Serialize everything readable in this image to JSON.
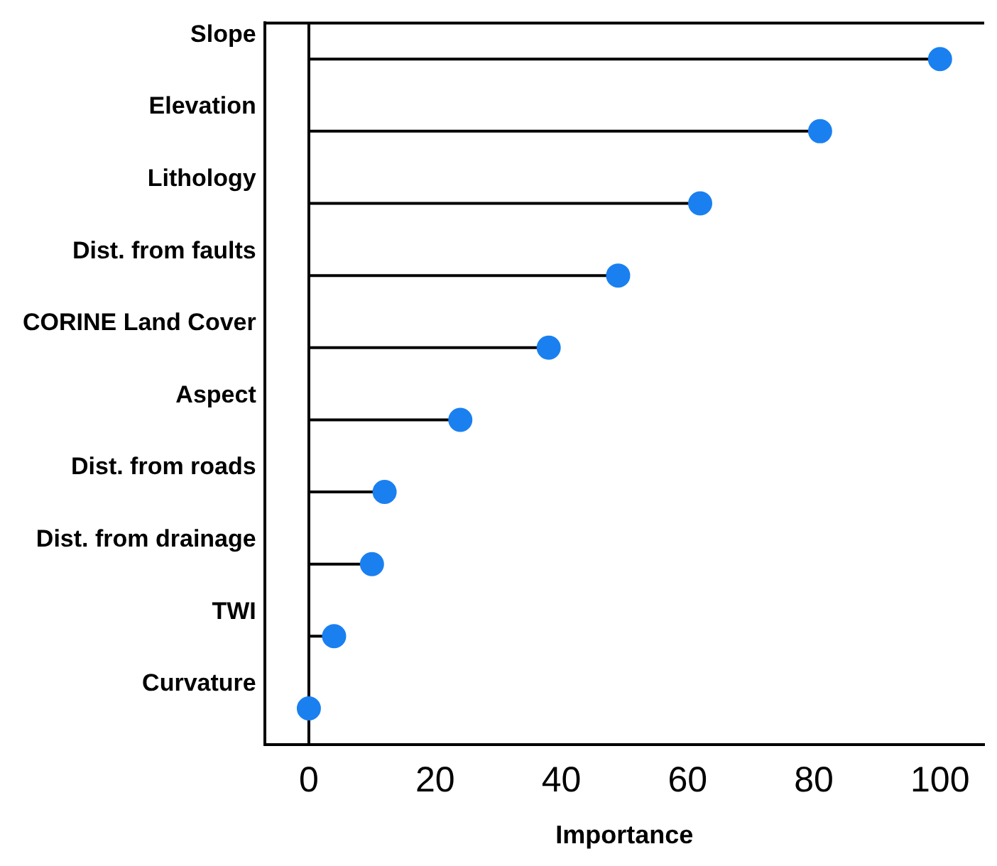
{
  "chart_data": {
    "type": "lollipop",
    "orientation": "horizontal",
    "xlabel": "Importance",
    "categories": [
      "Slope",
      "Elevation",
      "Lithology",
      "Dist. from faults",
      "CORINE Land Cover",
      "Aspect",
      "Dist. from roads",
      "Dist. from drainage",
      "TWI",
      "Curvature"
    ],
    "values": [
      100,
      81,
      62,
      49,
      38,
      24,
      12,
      10,
      4,
      0
    ],
    "color": "#1a80f0",
    "marker": "circle",
    "grid": false,
    "legend": false,
    "xlim": [
      -7,
      107
    ],
    "xticks": [
      0,
      20,
      40,
      60,
      80,
      100
    ],
    "ref_lines": [
      {
        "axis": "x",
        "value": 0,
        "color": "#000000"
      }
    ]
  }
}
